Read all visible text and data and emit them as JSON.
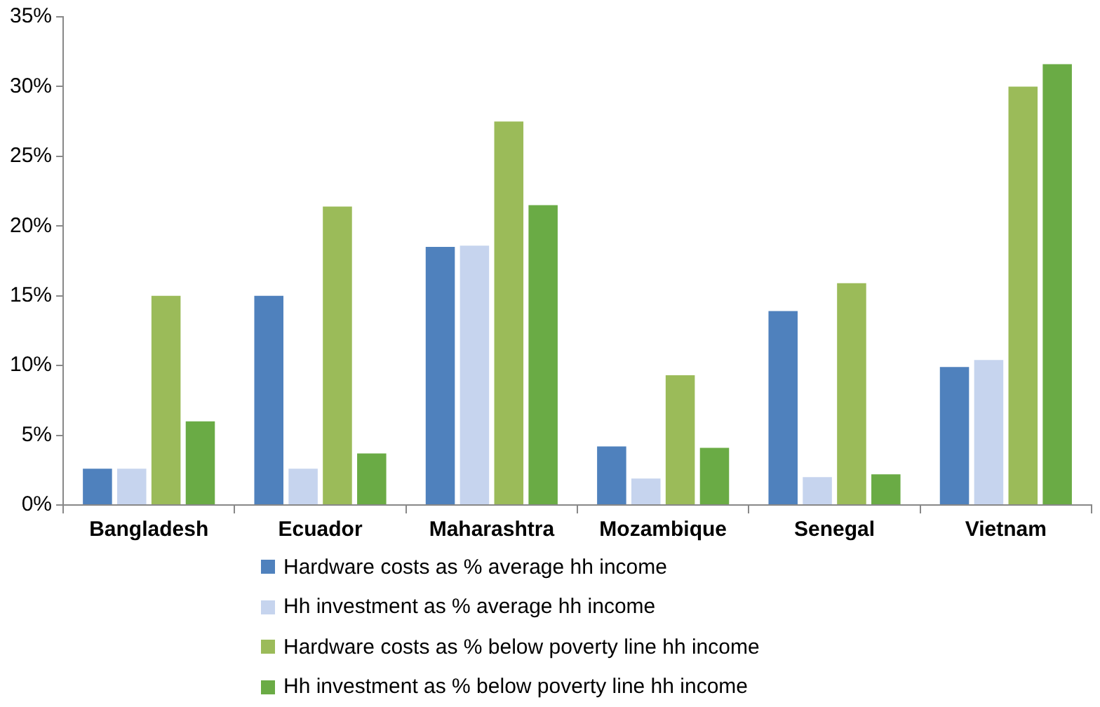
{
  "chart_data": {
    "type": "bar",
    "categories": [
      "Bangladesh",
      "Ecuador",
      "Maharashtra",
      "Mozambique",
      "Senegal",
      "Vietnam"
    ],
    "series": [
      {
        "name": "Hardware costs as % average hh income",
        "color": "#4f81bd",
        "values": [
          2.6,
          15,
          18.5,
          4.2,
          13.9,
          9.9
        ]
      },
      {
        "name": "Hh investment as % average hh income",
        "color": "#c6d4ee",
        "values": [
          2.6,
          2.6,
          18.6,
          1.9,
          2.0,
          10.4
        ]
      },
      {
        "name": "Hardware costs as % below poverty line hh income",
        "color": "#9bbb59",
        "values": [
          15,
          21.4,
          27.5,
          9.3,
          15.9,
          30
        ]
      },
      {
        "name": "Hh investment as % below poverty line hh income",
        "color": "#6aab45",
        "values": [
          6,
          3.7,
          21.5,
          4.1,
          2.2,
          31.6
        ]
      }
    ],
    "ylim": [
      0,
      35
    ],
    "yticks": [
      {
        "value": 0,
        "label": "0%"
      },
      {
        "value": 5,
        "label": "5%"
      },
      {
        "value": 10,
        "label": "10%"
      },
      {
        "value": 15,
        "label": "15%"
      },
      {
        "value": 20,
        "label": "20%"
      },
      {
        "value": 25,
        "label": "25%"
      },
      {
        "value": 30,
        "label": "30%"
      },
      {
        "value": 35,
        "label": "35%"
      }
    ],
    "grid": false,
    "legend": "bottom"
  }
}
